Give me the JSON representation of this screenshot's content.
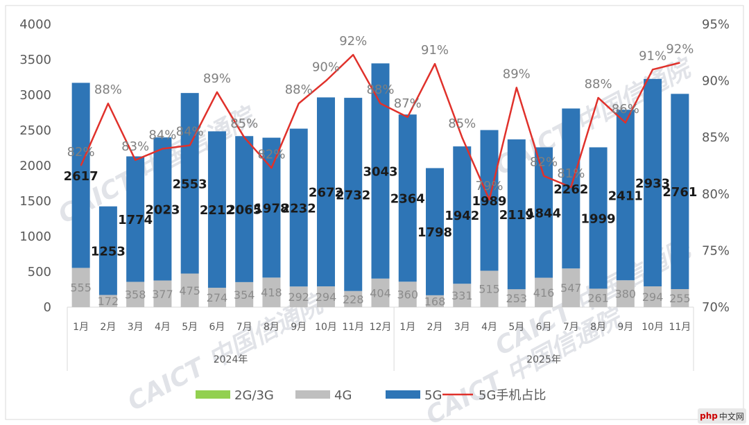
{
  "chart_data": {
    "type": "bar",
    "stacked": true,
    "groups": [
      {
        "label": "2024年",
        "months": [
          "1月",
          "2月",
          "3月",
          "4月",
          "5月",
          "6月",
          "7月",
          "8月",
          "9月",
          "10月",
          "11月",
          "12月"
        ]
      },
      {
        "label": "2025年",
        "months": [
          "1月",
          "2月",
          "3月",
          "4月",
          "5月",
          "6月",
          "7月",
          "8月",
          "9月",
          "10月",
          "11月"
        ]
      }
    ],
    "categories": [
      "1月",
      "2月",
      "3月",
      "4月",
      "5月",
      "6月",
      "7月",
      "8月",
      "9月",
      "10月",
      "11月",
      "12月",
      "1月",
      "2月",
      "3月",
      "4月",
      "5月",
      "6月",
      "7月",
      "8月",
      "9月",
      "10月",
      "11月"
    ],
    "series": [
      {
        "name": "2G/3G",
        "color": "#92d050",
        "values": [
          0,
          0,
          0,
          0,
          0,
          0,
          0,
          0,
          0,
          0,
          0,
          0,
          0,
          0,
          0,
          0,
          0,
          0,
          0,
          0,
          0,
          0,
          0
        ]
      },
      {
        "name": "4G",
        "color": "#bfbfbf",
        "values": [
          555,
          172,
          358,
          377,
          475,
          274,
          354,
          418,
          292,
          294,
          228,
          404,
          360,
          168,
          331,
          515,
          253,
          416,
          547,
          261,
          380,
          294,
          255
        ]
      },
      {
        "name": "5G",
        "color": "#2e75b6",
        "values": [
          2617,
          1253,
          1774,
          2023,
          2553,
          2212,
          2065,
          1978,
          2232,
          2672,
          2732,
          3043,
          2364,
          1798,
          1942,
          1989,
          2119,
          1844,
          2262,
          1999,
          2411,
          2933,
          2761
        ]
      },
      {
        "name": "5G手机占比",
        "color": "#e0312b",
        "type": "line",
        "axis": "right",
        "values": [
          82.5,
          88,
          83,
          84,
          84.3,
          89,
          85,
          82.3,
          88,
          90,
          92.3,
          88,
          86.8,
          91.5,
          85,
          79.5,
          89.4,
          81.6,
          80.6,
          88.5,
          86.3,
          91,
          91.6
        ],
        "labels": [
          "82%",
          "88%",
          "83%",
          "84%",
          "84%",
          "89%",
          "85%",
          "82%",
          "88%",
          "90%",
          "92%",
          "88%",
          "87%",
          "91%",
          "85%",
          "79%",
          "89%",
          "82%",
          "81%",
          "88%",
          "86%",
          "91%",
          "92%"
        ]
      }
    ],
    "legend": [
      "2G/3G",
      "4G",
      "5G",
      "5G手机占比"
    ],
    "legend_position": "bottom",
    "y_left": {
      "min": 0,
      "max": 4000,
      "ticks": [
        "0",
        "500",
        "1000",
        "1500",
        "2000",
        "2500",
        "3000",
        "3500",
        "4000"
      ]
    },
    "y_right": {
      "min": 70,
      "max": 95,
      "ticks": [
        "70%",
        "75%",
        "80%",
        "85%",
        "90%",
        "95%"
      ]
    },
    "watermark": "CAICT 中国信通院"
  },
  "badge": {
    "brand": "php",
    "text": "中文网"
  }
}
